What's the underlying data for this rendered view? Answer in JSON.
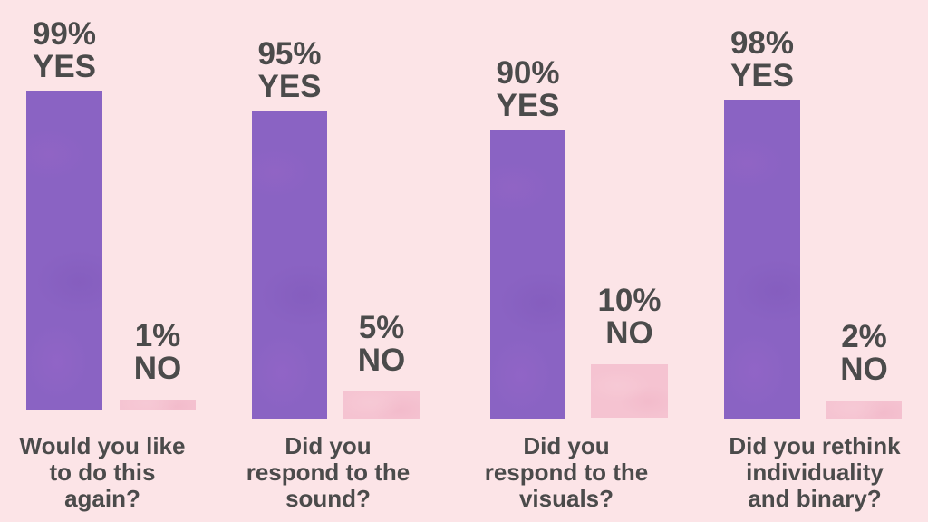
{
  "chart_data": {
    "type": "bar",
    "title": "",
    "categories": [
      "Would you like to do this again?",
      "Did you respond to the sound?",
      "Did you respond to the visuals?",
      "Did you rethink individuality and binary?"
    ],
    "series": [
      {
        "name": "YES",
        "values": [
          99,
          95,
          90,
          98
        ]
      },
      {
        "name": "NO",
        "values": [
          1,
          5,
          10,
          2
        ]
      }
    ],
    "ylim": [
      0,
      100
    ],
    "grid": false,
    "legend": "none",
    "groups": [
      {
        "question": "Would you like to do this again?",
        "question_lines": [
          "Would you like",
          "to do this",
          "again?"
        ],
        "yes": {
          "pct": 99,
          "label": "99%",
          "word": "YES"
        },
        "no": {
          "pct": 1,
          "label": "1%",
          "word": "NO"
        }
      },
      {
        "question": "Did you respond to the sound?",
        "question_lines": [
          "Did you",
          "respond to the",
          "sound?"
        ],
        "yes": {
          "pct": 95,
          "label": "95%",
          "word": "YES"
        },
        "no": {
          "pct": 5,
          "label": "5%",
          "word": "NO"
        }
      },
      {
        "question": "Did you respond to the visuals?",
        "question_lines": [
          "Did you",
          "respond to the",
          "visuals?"
        ],
        "yes": {
          "pct": 90,
          "label": "90%",
          "word": "YES"
        },
        "no": {
          "pct": 10,
          "label": "10%",
          "word": "NO"
        }
      },
      {
        "question": "Did you rethink individuality and binary?",
        "question_lines": [
          "Did you rethink",
          "individuality",
          "and binary?"
        ],
        "yes": {
          "pct": 98,
          "label": "98%",
          "word": "YES"
        },
        "no": {
          "pct": 2,
          "label": "2%",
          "word": "NO"
        }
      }
    ],
    "colors": {
      "background": "#fce4e7",
      "yes_bar": "#8a63c3",
      "no_bar": "#f5c3d1",
      "text": "#4b4b4b"
    }
  }
}
